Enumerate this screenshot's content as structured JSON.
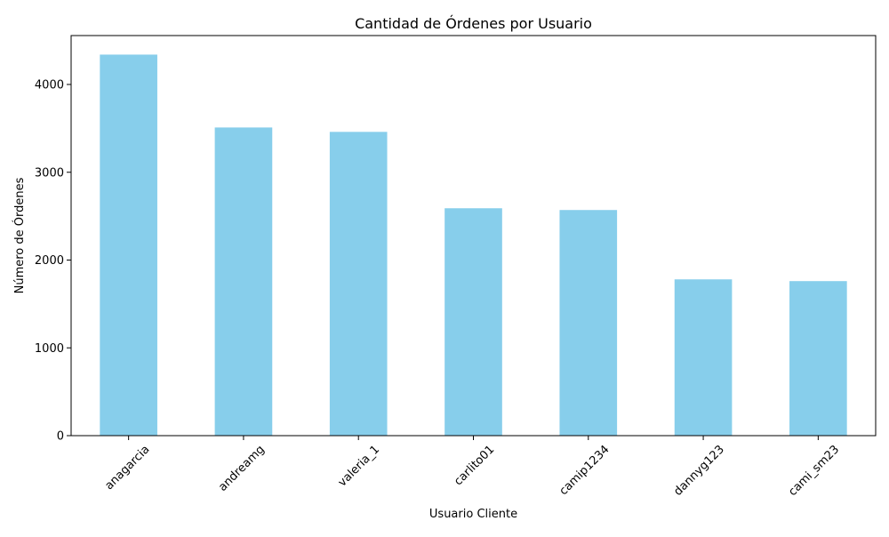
{
  "chart_data": {
    "type": "bar",
    "title": "Cantidad de Órdenes por Usuario",
    "xlabel": "Usuario Cliente",
    "ylabel": "Número de Órdenes",
    "categories": [
      "anagarcia",
      "andreamg",
      "valeria_1",
      "carlito01",
      "camip1234",
      "dannyg123",
      "cami_sm23"
    ],
    "values": [
      4340,
      3510,
      3460,
      2590,
      2570,
      1780,
      1760
    ],
    "ylim": [
      0,
      4557
    ],
    "yticks": [
      0,
      1000,
      2000,
      3000,
      4000
    ],
    "bar_color": "#87ceeb",
    "grid": false,
    "legend": "none",
    "xtick_rotation_deg": 45
  }
}
